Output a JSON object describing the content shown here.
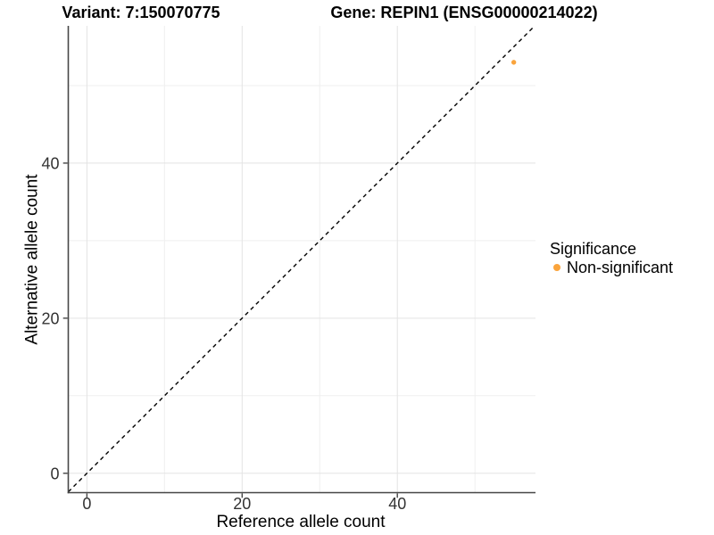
{
  "chart_data": {
    "type": "scatter",
    "titles": [
      "Variant: 7:150070775",
      "Gene: REPIN1 (ENSG00000214022)"
    ],
    "xlabel": "Reference allele count",
    "ylabel": "Alternative allele count",
    "xlim": [
      -2.4,
      57.8
    ],
    "ylim": [
      -2.5,
      57.7
    ],
    "xticks": [
      0,
      20,
      40
    ],
    "yticks": [
      0,
      20,
      40
    ],
    "x_minor": [
      10,
      30,
      50
    ],
    "y_minor": [
      10,
      30,
      50
    ],
    "grid": "on",
    "reference_line": {
      "type": "identity",
      "equation": "y = x",
      "style": "dashed",
      "color": "#000000"
    },
    "series": [
      {
        "name": "Non-significant",
        "color": "#FAA43C",
        "marker": "circle",
        "points": [
          [
            55,
            53
          ]
        ]
      }
    ],
    "legend": {
      "title": "Significance",
      "position": "right",
      "items": [
        {
          "label": "Non-significant",
          "color": "#FAA43C",
          "marker": "circle"
        }
      ]
    },
    "style_colors": {
      "axis_line": "#464646",
      "grid_major": "#E3E3E3",
      "grid_minor": "#EFEFEF",
      "tick_label": "#333333"
    }
  }
}
